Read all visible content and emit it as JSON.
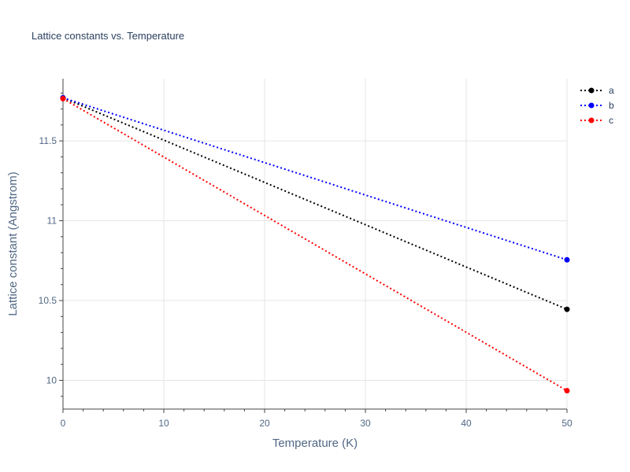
{
  "chart_data": {
    "type": "line",
    "title": "Lattice constants vs. Temperature",
    "xlabel": "Temperature (K)",
    "ylabel": "Lattice constant (Angstrom)",
    "xlim": [
      0,
      50
    ],
    "ylim": [
      9.82,
      11.89
    ],
    "x_ticks": [
      0,
      10,
      20,
      30,
      40,
      50
    ],
    "x_tick_labels": [
      "0",
      "10",
      "20",
      "30",
      "40",
      "50"
    ],
    "y_ticks": [
      10,
      10.5,
      11,
      11.5
    ],
    "y_tick_labels": [
      "10",
      "10.5",
      "11",
      "11.5"
    ],
    "grid": true,
    "legend_position": "top-right",
    "line_style": "dotted",
    "x": [
      0,
      50
    ],
    "series": [
      {
        "name": "a",
        "color": "#000000",
        "values": [
          11.77,
          10.445
        ]
      },
      {
        "name": "b",
        "color": "#0000ff",
        "values": [
          11.77,
          10.755
        ]
      },
      {
        "name": "c",
        "color": "#ff0000",
        "values": [
          11.765,
          9.935
        ]
      }
    ]
  }
}
